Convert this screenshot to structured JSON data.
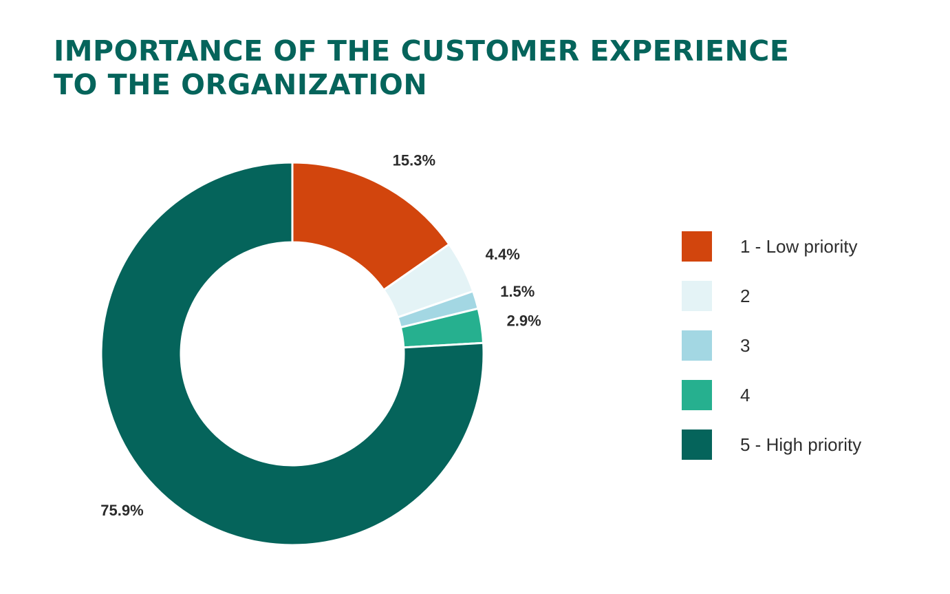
{
  "title_lines": [
    "IMPORTANCE OF THE CUSTOMER EXPERIENCE",
    "TO THE ORGANIZATION"
  ],
  "colors": {
    "title": "#05645b",
    "slice_border": "#ffffff"
  },
  "chart_data": {
    "type": "pie",
    "variant": "donut",
    "title": "IMPORTANCE OF THE CUSTOMER EXPERIENCE TO THE ORGANIZATION",
    "start_angle_deg": 0,
    "direction": "clockwise",
    "legend_position": "right",
    "slices": [
      {
        "label": "1 - Low priority",
        "value": 15.3,
        "display": "15.3%",
        "color": "#d2450d"
      },
      {
        "label": "2",
        "value": 4.4,
        "display": "4.4%",
        "color": "#e4f3f6"
      },
      {
        "label": "3",
        "value": 1.5,
        "display": "1.5%",
        "color": "#a3d7e3"
      },
      {
        "label": "4",
        "value": 2.9,
        "display": "2.9%",
        "color": "#26b08f"
      },
      {
        "label": "5 - High priority",
        "value": 75.9,
        "display": "75.9%",
        "color": "#05645b"
      }
    ]
  }
}
